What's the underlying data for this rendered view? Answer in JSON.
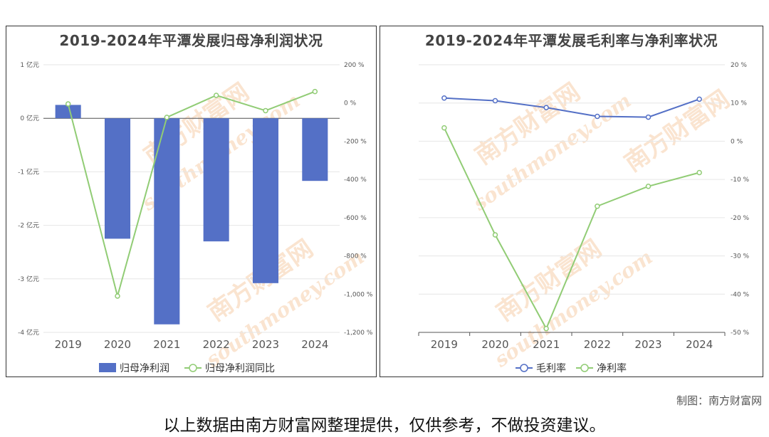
{
  "colors": {
    "bar": "#5470c6",
    "line_green": "#91cc75",
    "line_blue": "#5470c6",
    "watermark": "#f6cdaa"
  },
  "watermark": {
    "brand": "南方财富网",
    "site": "southmoney.com"
  },
  "charts": [
    {
      "title": "2019-2024年平潭发展归母净利润状况",
      "legend": [
        "归母净利润",
        "归母净利润同比"
      ]
    },
    {
      "title": "2019-2024年平潭发展毛利率与净利率状况",
      "legend": [
        "毛利率",
        "净利率"
      ]
    }
  ],
  "chart_data": [
    {
      "type": "bar",
      "title": "2019-2024年平潭发展归母净利润状况",
      "categories": [
        "2019",
        "2020",
        "2021",
        "2022",
        "2023",
        "2024"
      ],
      "series": [
        {
          "name": "归母净利润",
          "type": "bar",
          "axis": "left",
          "values": [
            0.25,
            -2.25,
            -3.85,
            -2.3,
            -3.08,
            -1.17
          ]
        },
        {
          "name": "归母净利润同比",
          "type": "line",
          "axis": "right",
          "values": [
            -5,
            -1010,
            -75,
            40,
            -40,
            60
          ]
        }
      ],
      "y_left": {
        "ylim": [
          -4,
          1
        ],
        "ticks": [
          1,
          0,
          -1,
          -2,
          -3,
          -4
        ],
        "tick_labels": [
          "1 亿元",
          "0 亿元",
          "-1 亿元",
          "-2 亿元",
          "-3 亿元",
          "-4 亿元"
        ]
      },
      "y_right": {
        "ylim": [
          -1200,
          200
        ],
        "ticks": [
          200,
          0,
          -200,
          -400,
          -600,
          -800,
          -1000,
          -1200
        ],
        "tick_labels": [
          "200 %",
          "0 %",
          "-200 %",
          "-400 %",
          "-600 %",
          "-800 %",
          "-1,000 %",
          "-1,200 %"
        ]
      },
      "grid": true,
      "legend_position": "bottom"
    },
    {
      "type": "line",
      "title": "2019-2024年平潭发展毛利率与净利率状况",
      "categories": [
        "2019",
        "2020",
        "2021",
        "2022",
        "2023",
        "2024"
      ],
      "series": [
        {
          "name": "毛利率",
          "values": [
            11.3,
            10.6,
            8.8,
            6.5,
            6.3,
            11.0
          ]
        },
        {
          "name": "净利率",
          "values": [
            3.5,
            -24.5,
            -49.0,
            -17.0,
            -11.8,
            -8.2
          ]
        }
      ],
      "y_right": {
        "ylim": [
          -50,
          20
        ],
        "ticks": [
          20,
          10,
          0,
          -10,
          -20,
          -30,
          -40,
          -50
        ],
        "tick_labels": [
          "20 %",
          "10 %",
          "0 %",
          "-10 %",
          "-20 %",
          "-30 %",
          "-40 %",
          "-50 %"
        ]
      },
      "grid": true,
      "legend_position": "bottom"
    }
  ],
  "footer": {
    "credit": "制图：南方财富网",
    "disclaimer": "以上数据由南方财富网整理提供，仅供参考，不做投资建议。"
  }
}
